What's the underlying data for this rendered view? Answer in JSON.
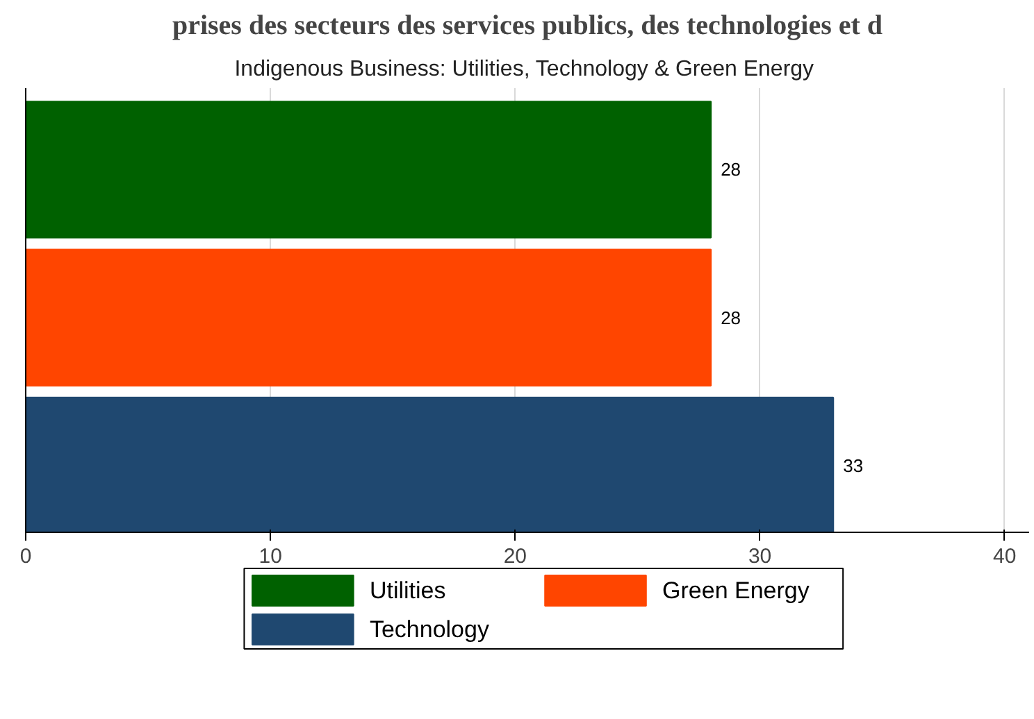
{
  "chart_data": {
    "type": "bar",
    "orientation": "horizontal",
    "title": "prises des secteurs des services publics, des technologies et d",
    "subtitle": "Indigenous Business:  Utilities, Technology & Green Energy",
    "categories": [
      null,
      null,
      null
    ],
    "series": [
      {
        "name": "Utilities",
        "color": "#006100",
        "values": [
          28,
          null,
          null
        ]
      },
      {
        "name": "Green Energy",
        "color": "#ff4500",
        "values": [
          null,
          28,
          null
        ]
      },
      {
        "name": "Technology",
        "color": "#1f4870",
        "values": [
          null,
          null,
          33
        ]
      }
    ],
    "xlim": [
      0,
      41
    ],
    "xticks": [
      0,
      10,
      20,
      30,
      40
    ],
    "grid": "x",
    "legend": "bottom",
    "data_labels": true,
    "tick_labels": "x"
  }
}
